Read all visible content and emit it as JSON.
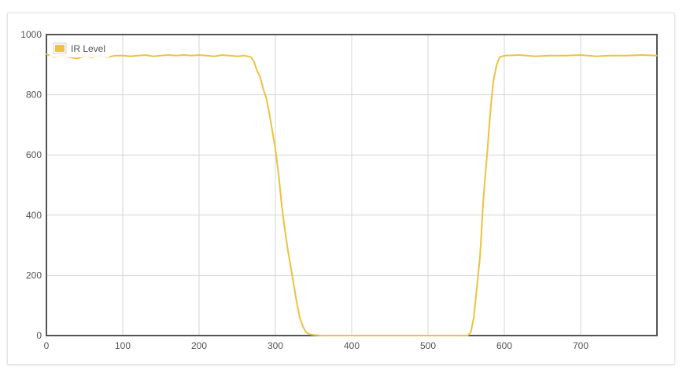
{
  "chart_data": {
    "type": "line",
    "title": "",
    "xlabel": "",
    "ylabel": "",
    "xlim": [
      0,
      800
    ],
    "ylim": [
      0,
      1000
    ],
    "x_ticks": [
      "0",
      "100",
      "200",
      "300",
      "400",
      "500",
      "600",
      "700"
    ],
    "y_ticks": [
      "0",
      "200",
      "400",
      "600",
      "800",
      "1000"
    ],
    "grid": true,
    "legend": {
      "position": "top-left"
    },
    "series": [
      {
        "name": "IR Level",
        "color": "#edc240",
        "points": [
          [
            0,
            935
          ],
          [
            10,
            925
          ],
          [
            20,
            930
          ],
          [
            30,
            925
          ],
          [
            40,
            920
          ],
          [
            50,
            928
          ],
          [
            60,
            925
          ],
          [
            70,
            930
          ],
          [
            80,
            925
          ],
          [
            90,
            930
          ],
          [
            100,
            930
          ],
          [
            110,
            928
          ],
          [
            120,
            930
          ],
          [
            130,
            932
          ],
          [
            140,
            928
          ],
          [
            150,
            930
          ],
          [
            160,
            932
          ],
          [
            170,
            930
          ],
          [
            180,
            932
          ],
          [
            190,
            930
          ],
          [
            200,
            932
          ],
          [
            210,
            930
          ],
          [
            220,
            928
          ],
          [
            230,
            932
          ],
          [
            240,
            930
          ],
          [
            250,
            928
          ],
          [
            260,
            930
          ],
          [
            268,
            925
          ],
          [
            272,
            910
          ],
          [
            276,
            880
          ],
          [
            280,
            860
          ],
          [
            284,
            820
          ],
          [
            288,
            790
          ],
          [
            292,
            740
          ],
          [
            296,
            680
          ],
          [
            300,
            620
          ],
          [
            304,
            540
          ],
          [
            308,
            440
          ],
          [
            312,
            360
          ],
          [
            316,
            290
          ],
          [
            320,
            230
          ],
          [
            324,
            170
          ],
          [
            328,
            110
          ],
          [
            332,
            60
          ],
          [
            336,
            30
          ],
          [
            340,
            12
          ],
          [
            344,
            5
          ],
          [
            350,
            2
          ],
          [
            360,
            0
          ],
          [
            400,
            0
          ],
          [
            450,
            0
          ],
          [
            500,
            0
          ],
          [
            540,
            0
          ],
          [
            552,
            0
          ],
          [
            556,
            10
          ],
          [
            560,
            60
          ],
          [
            564,
            160
          ],
          [
            568,
            260
          ],
          [
            570,
            340
          ],
          [
            572,
            430
          ],
          [
            574,
            500
          ],
          [
            576,
            560
          ],
          [
            578,
            620
          ],
          [
            580,
            690
          ],
          [
            583,
            780
          ],
          [
            586,
            850
          ],
          [
            590,
            900
          ],
          [
            594,
            925
          ],
          [
            600,
            930
          ],
          [
            620,
            932
          ],
          [
            640,
            928
          ],
          [
            660,
            930
          ],
          [
            680,
            930
          ],
          [
            700,
            932
          ],
          [
            720,
            928
          ],
          [
            740,
            930
          ],
          [
            760,
            930
          ],
          [
            780,
            932
          ],
          [
            800,
            930
          ]
        ]
      }
    ]
  }
}
